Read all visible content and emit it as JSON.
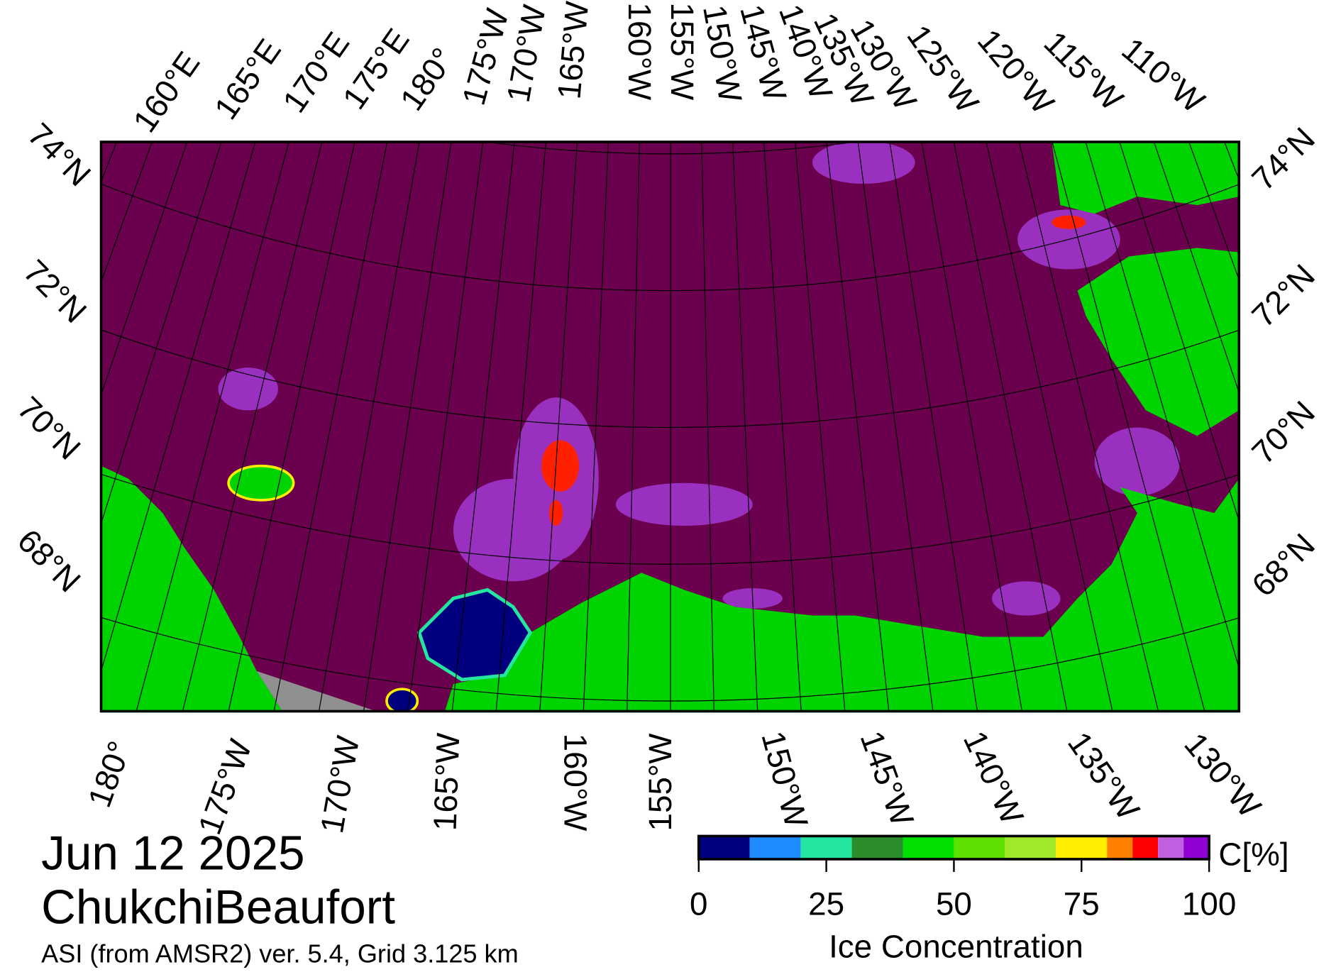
{
  "title": "Jun 12 2025",
  "region": "ChukchiBeaufort",
  "source": "ASI (from AMSR2) ver. 5.4,  Grid 3.125 km",
  "map": {
    "lat_labels_left": [
      "74°N",
      "72°N",
      "70°N",
      "68°N"
    ],
    "lat_labels_right": [
      "74°N",
      "72°N",
      "70°N",
      "68°N"
    ],
    "lon_labels_top": [
      "160°E",
      "165°E",
      "170°E",
      "175°E",
      "180°",
      "175°W",
      "170°W",
      "165°W",
      "160°W",
      "155°W",
      "150°W",
      "145°W",
      "140°W",
      "135°W",
      "130°W",
      "125°W",
      "120°W",
      "115°W",
      "110°W"
    ],
    "lon_labels_bottom": [
      "180°",
      "175°W",
      "170°W",
      "165°W",
      "160°W",
      "155°W",
      "150°W",
      "145°W",
      "140°W",
      "135°W",
      "130°W"
    ]
  },
  "colorbar": {
    "label": "Ice Concentration",
    "unit": "C[%]",
    "ticks": [
      0,
      25,
      50,
      75,
      100
    ],
    "bounds": [
      0,
      10,
      20,
      30,
      40,
      50,
      60,
      70,
      80,
      85,
      90,
      95,
      100
    ],
    "colors": [
      "#00007f",
      "#1e8cff",
      "#24e6a0",
      "#2a8c2a",
      "#00e000",
      "#5ee000",
      "#a0e82a",
      "#ffee00",
      "#ff8000",
      "#ff0000",
      "#c060e0",
      "#9000d0"
    ]
  }
}
